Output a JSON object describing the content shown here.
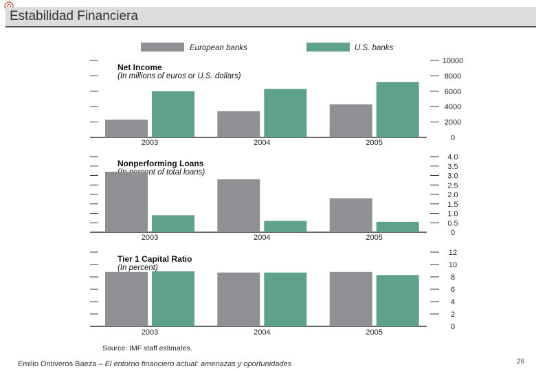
{
  "header": {
    "title": "Estabilidad Financiera"
  },
  "footer": {
    "author": "Emilio Ontiveros Baeza",
    "separator": " – ",
    "subtitle": "El entorno financiero actual: amenazas y oportunidades",
    "page_number": "26"
  },
  "colors": {
    "european": "#8f8f94",
    "us": "#5ea389",
    "title_bar": "#dcdcdc"
  },
  "chart_data": [
    {
      "type": "bar",
      "title": "Net Income",
      "subtitle": "(In millions of euros or U.S. dollars)",
      "categories": [
        "2003",
        "2004",
        "2005"
      ],
      "series": [
        {
          "name": "European banks",
          "values": [
            2300,
            3400,
            4300
          ]
        },
        {
          "name": "U.S. banks",
          "values": [
            6000,
            6300,
            7200
          ]
        }
      ],
      "ylim": [
        0,
        10000
      ],
      "yticks": [
        0,
        2000,
        4000,
        6000,
        8000,
        10000
      ],
      "ytick_labels": [
        "0",
        "2000",
        "4000",
        "6000",
        "8000",
        "10000"
      ],
      "legend": "top"
    },
    {
      "type": "bar",
      "title": "Nonperforming Loans",
      "subtitle": "(In percent of total loans)",
      "categories": [
        "2003",
        "2004",
        "2005"
      ],
      "series": [
        {
          "name": "European banks",
          "values": [
            3.2,
            2.8,
            1.8
          ]
        },
        {
          "name": "U.S. banks",
          "values": [
            0.9,
            0.6,
            0.55
          ]
        }
      ],
      "ylim": [
        0,
        4.0
      ],
      "yticks": [
        0,
        0.5,
        1.0,
        1.5,
        2.0,
        2.5,
        3.0,
        3.5,
        4.0
      ],
      "ytick_labels": [
        "0",
        "0.5",
        "1.0",
        "1.5",
        "2.0",
        "2.5",
        "3.0",
        "3.5",
        "4.0"
      ]
    },
    {
      "type": "bar",
      "title": "Tier 1 Capital Ratio",
      "subtitle": "(In percent)",
      "categories": [
        "2003",
        "2004",
        "2005"
      ],
      "series": [
        {
          "name": "European banks",
          "values": [
            8.8,
            8.7,
            8.8
          ]
        },
        {
          "name": "U.S. banks",
          "values": [
            8.9,
            8.7,
            8.3
          ]
        }
      ],
      "ylim": [
        0,
        12
      ],
      "yticks": [
        0,
        2,
        4,
        6,
        8,
        10,
        12
      ],
      "ytick_labels": [
        "0",
        "2",
        "4",
        "6",
        "8",
        "10",
        "12"
      ],
      "source": "Source: IMF staff estimates."
    }
  ]
}
